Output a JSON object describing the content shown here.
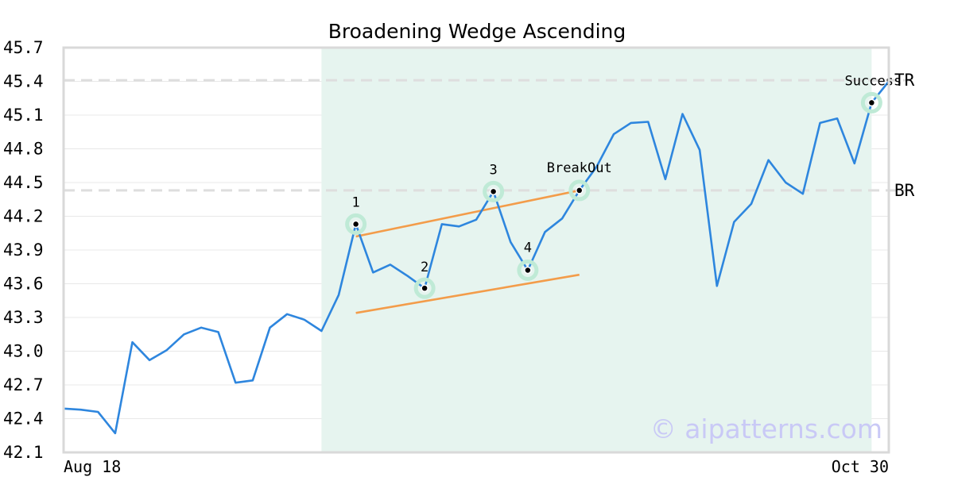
{
  "chart_data": {
    "type": "line",
    "title": "Broadening Wedge Ascending",
    "xlabel": "",
    "ylabel": "",
    "x_tick_labels": [
      "Aug 18",
      "Oct 30"
    ],
    "ylim": [
      42.1,
      45.7
    ],
    "y_ticks": [
      "42.1",
      "42.4",
      "42.7",
      "43.0",
      "43.3",
      "43.6",
      "43.9",
      "44.2",
      "44.5",
      "44.8",
      "45.1",
      "45.4",
      "45.7"
    ],
    "grid": true,
    "series": [
      {
        "color": "#2e86de",
        "values": [
          42.49,
          42.48,
          42.46,
          42.27,
          43.08,
          42.92,
          43.01,
          43.15,
          43.21,
          43.17,
          42.72,
          42.74,
          43.21,
          43.33,
          43.28,
          43.18,
          43.5,
          44.13,
          43.7,
          43.77,
          43.67,
          43.56,
          44.13,
          44.11,
          44.17,
          44.42,
          43.97,
          43.72,
          44.06,
          44.18,
          44.43,
          44.64,
          44.93,
          45.03,
          45.04,
          44.53,
          45.11,
          44.79,
          43.58,
          44.15,
          44.31,
          44.7,
          44.5,
          44.4,
          45.03,
          45.07,
          44.67,
          45.21,
          45.4
        ]
      }
    ],
    "pattern_region": {
      "x_start": 15,
      "x_end": 47,
      "color": "#e6f4ef"
    },
    "levels": [
      {
        "label": "TR",
        "value": 45.41
      },
      {
        "label": "BR",
        "value": 44.43
      }
    ],
    "trend_lines": [
      {
        "x1": 17,
        "y1": 44.02,
        "x2": 30,
        "y2": 44.43,
        "color": "#f39c4a"
      },
      {
        "x1": 17,
        "y1": 43.34,
        "x2": 30,
        "y2": 43.68,
        "color": "#f39c4a"
      }
    ],
    "markers": [
      {
        "label": "1",
        "x": 17,
        "y": 44.13
      },
      {
        "label": "2",
        "x": 21,
        "y": 43.56
      },
      {
        "label": "3",
        "x": 25,
        "y": 44.42
      },
      {
        "label": "4",
        "x": 27,
        "y": 43.72
      },
      {
        "label": "BreakOut",
        "x": 30,
        "y": 44.43
      },
      {
        "label": "Success",
        "x": 47,
        "y": 45.21
      }
    ],
    "watermark": "© aipatterns.com"
  }
}
